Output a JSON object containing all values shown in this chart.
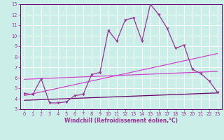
{
  "xlabel": "Windchill (Refroidissement éolien,°C)",
  "bg_color": "#cceee8",
  "grid_color": "#ffffff",
  "line_color_main": "#993399",
  "line_color_light": "#cc44cc",
  "line_color_dark": "#660066",
  "xlim_min": -0.5,
  "xlim_max": 23.5,
  "ylim_min": 3,
  "ylim_max": 13,
  "xticks": [
    0,
    1,
    2,
    3,
    4,
    5,
    6,
    7,
    8,
    9,
    10,
    11,
    12,
    13,
    14,
    15,
    16,
    17,
    18,
    19,
    20,
    21,
    22,
    23
  ],
  "yticks": [
    3,
    4,
    5,
    6,
    7,
    8,
    9,
    10,
    11,
    12,
    13
  ],
  "main_x": [
    0,
    1,
    2,
    3,
    4,
    5,
    6,
    7,
    8,
    9,
    10,
    11,
    12,
    13,
    14,
    15,
    16,
    17,
    18,
    19,
    20,
    21,
    22,
    23
  ],
  "main_y": [
    4.5,
    4.4,
    5.9,
    3.6,
    3.6,
    3.7,
    4.3,
    4.4,
    6.3,
    6.5,
    10.5,
    9.5,
    11.5,
    11.7,
    9.5,
    13.0,
    12.0,
    10.7,
    8.8,
    9.1,
    6.8,
    6.4,
    5.7,
    4.6
  ],
  "trend1_x": [
    0,
    23
  ],
  "trend1_y": [
    4.3,
    8.3
  ],
  "trend2_x": [
    0,
    23
  ],
  "trend2_y": [
    3.85,
    4.55
  ],
  "trend3_x": [
    0,
    23
  ],
  "trend3_y": [
    5.85,
    6.6
  ],
  "xlabel_fontsize": 5.5,
  "tick_fontsize": 4.8,
  "marker_size": 2.5
}
